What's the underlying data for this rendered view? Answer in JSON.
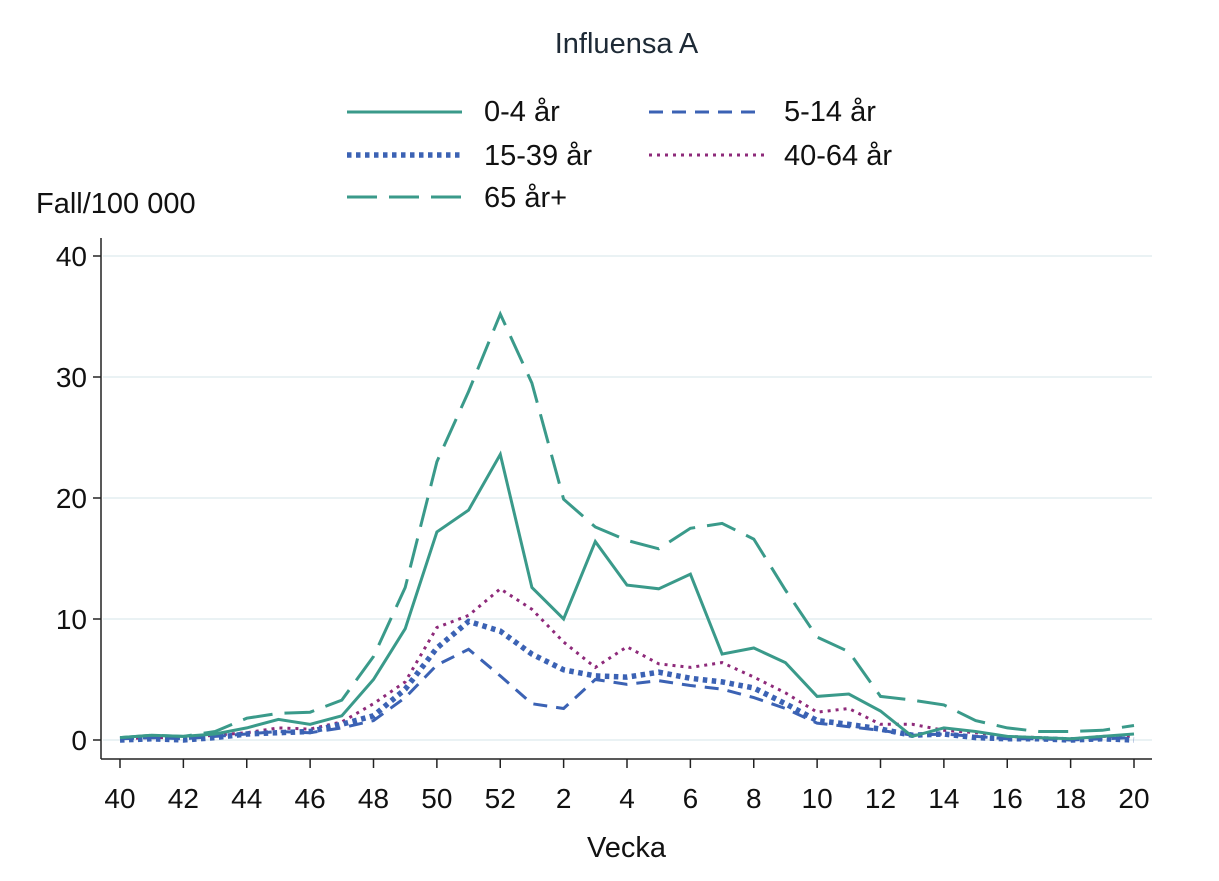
{
  "chart_data": {
    "type": "line",
    "title": "Influensa A",
    "xlabel": "Vecka",
    "ylabel": "Fall/100 000",
    "ylim": [
      0,
      40
    ],
    "yticks": [
      0,
      10,
      20,
      30,
      40
    ],
    "grid": true,
    "legend_position": "top",
    "x": [
      40,
      41,
      42,
      43,
      44,
      45,
      46,
      47,
      48,
      49,
      50,
      51,
      52,
      1,
      2,
      3,
      4,
      5,
      6,
      7,
      8,
      9,
      10,
      11,
      12,
      13,
      14,
      15,
      16,
      17,
      18,
      19,
      20
    ],
    "xticks": [
      "40",
      "42",
      "44",
      "46",
      "48",
      "50",
      "52",
      "2",
      "4",
      "6",
      "8",
      "10",
      "12",
      "14",
      "16",
      "18",
      "20"
    ],
    "series": [
      {
        "name": "0-4 år",
        "color": "#3a9a8a",
        "dash": "solid",
        "values": [
          0.2,
          0.4,
          0.3,
          0.5,
          1.0,
          1.7,
          1.3,
          2.0,
          5.0,
          9.2,
          17.2,
          19.0,
          23.6,
          12.6,
          10.0,
          16.4,
          12.8,
          12.5,
          13.7,
          7.1,
          7.6,
          6.4,
          3.6,
          3.8,
          2.4,
          0.3,
          1.0,
          0.7,
          0.3,
          0.2,
          0.1,
          0.3,
          0.5
        ]
      },
      {
        "name": "5-14 år",
        "color": "#3b62b4",
        "dash": "dash",
        "values": [
          0.1,
          0.2,
          0.1,
          0.3,
          0.5,
          0.7,
          0.6,
          1.0,
          1.6,
          3.5,
          6.2,
          7.5,
          5.3,
          3.0,
          2.6,
          5.0,
          4.6,
          4.9,
          4.5,
          4.2,
          3.5,
          2.6,
          1.4,
          1.1,
          0.8,
          0.4,
          0.5,
          0.3,
          0.1,
          0.1,
          0.0,
          0.1,
          0.2
        ]
      },
      {
        "name": "15-39 år",
        "color": "#3b62b4",
        "dash": "dot-heavy",
        "values": [
          0.0,
          0.1,
          0.0,
          0.2,
          0.5,
          0.6,
          0.7,
          1.3,
          2.0,
          4.2,
          7.6,
          9.8,
          9.0,
          7.1,
          5.8,
          5.3,
          5.2,
          5.6,
          5.1,
          4.8,
          4.3,
          3.0,
          1.6,
          1.3,
          0.9,
          0.4,
          0.5,
          0.2,
          0.1,
          0.1,
          0.0,
          0.1,
          0.0
        ]
      },
      {
        "name": "40-64 år",
        "color": "#8e2a7a",
        "dash": "dot",
        "values": [
          0.1,
          0.2,
          0.2,
          0.4,
          0.6,
          1.0,
          0.9,
          1.5,
          3.0,
          4.8,
          9.3,
          10.3,
          12.5,
          10.8,
          8.1,
          6.0,
          7.7,
          6.3,
          6.0,
          6.4,
          5.2,
          3.9,
          2.3,
          2.6,
          1.3,
          1.3,
          0.8,
          0.6,
          0.3,
          0.2,
          0.1,
          0.3,
          0.3
        ]
      },
      {
        "name": "65 år+",
        "color": "#3a9a8a",
        "dash": "longdash",
        "values": [
          0.2,
          0.4,
          0.3,
          0.7,
          1.8,
          2.2,
          2.3,
          3.3,
          6.9,
          12.6,
          23.0,
          28.8,
          35.2,
          29.5,
          19.9,
          17.6,
          16.5,
          15.8,
          17.5,
          17.9,
          16.6,
          12.4,
          8.5,
          7.3,
          3.6,
          3.3,
          2.9,
          1.6,
          1.0,
          0.7,
          0.7,
          0.8,
          1.2
        ]
      }
    ]
  }
}
